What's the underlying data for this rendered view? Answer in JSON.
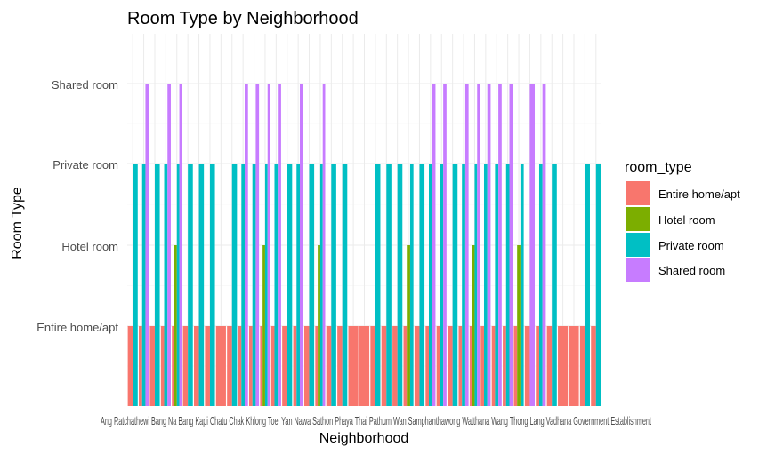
{
  "chart_data": {
    "type": "bar",
    "title": "Room Type by Neighborhood",
    "xlabel": "Neighborhood",
    "ylabel": "Room Type",
    "y_categories": [
      "Entire home/apt",
      "Hotel room",
      "Private room",
      "Shared room"
    ],
    "x_tick_text": "Ang Ratchathewi Bang Na Bang Kapi Chatu Chak Khlong Toei Yan Nawa Sathon Phaya Thai Pathum Wan Samphanthawong Watthana Wang Thong Lang Vadhana Government Establishment",
    "legend": {
      "title": "room_type",
      "items": [
        {
          "label": "Entire home/apt",
          "color": "#F8766D"
        },
        {
          "label": "Hotel room",
          "color": "#7CAE00"
        },
        {
          "label": "Private room",
          "color": "#00BFC4"
        },
        {
          "label": "Shared room",
          "color": "#C77CFF"
        }
      ]
    },
    "grid": true,
    "legend_position": "right",
    "neighborhoods": [
      {
        "types": [
          "Entire home/apt",
          "Private room"
        ]
      },
      {
        "types": [
          "Entire home/apt",
          "Private room",
          "Shared room"
        ]
      },
      {
        "types": [
          "Entire home/apt",
          "Private room"
        ]
      },
      {
        "types": [
          "Entire home/apt",
          "Private room",
          "Shared room"
        ]
      },
      {
        "types": [
          "Entire home/apt",
          "Hotel room",
          "Private room",
          "Shared room"
        ]
      },
      {
        "types": [
          "Entire home/apt",
          "Private room"
        ]
      },
      {
        "types": [
          "Entire home/apt",
          "Private room"
        ]
      },
      {
        "types": [
          "Entire home/apt",
          "Private room"
        ]
      },
      {
        "types": [
          "Entire home/apt"
        ]
      },
      {
        "types": [
          "Entire home/apt",
          "Private room"
        ]
      },
      {
        "types": [
          "Entire home/apt",
          "Private room",
          "Shared room"
        ]
      },
      {
        "types": [
          "Entire home/apt",
          "Private room",
          "Shared room"
        ]
      },
      {
        "types": [
          "Entire home/apt",
          "Hotel room",
          "Private room",
          "Shared room"
        ]
      },
      {
        "types": [
          "Entire home/apt",
          "Private room",
          "Shared room"
        ]
      },
      {
        "types": [
          "Entire home/apt",
          "Private room"
        ]
      },
      {
        "types": [
          "Entire home/apt",
          "Private room",
          "Shared room"
        ]
      },
      {
        "types": [
          "Entire home/apt",
          "Private room"
        ]
      },
      {
        "types": [
          "Entire home/apt",
          "Hotel room",
          "Private room",
          "Shared room"
        ]
      },
      {
        "types": [
          "Entire home/apt",
          "Private room"
        ]
      },
      {
        "types": [
          "Entire home/apt",
          "Private room"
        ]
      },
      {
        "types": [
          "Entire home/apt"
        ]
      },
      {
        "types": [
          "Entire home/apt"
        ]
      },
      {
        "types": [
          "Entire home/apt",
          "Private room"
        ]
      },
      {
        "types": [
          "Entire home/apt",
          "Private room"
        ]
      },
      {
        "types": [
          "Entire home/apt",
          "Private room"
        ]
      },
      {
        "types": [
          "Entire home/apt",
          "Hotel room",
          "Private room"
        ]
      },
      {
        "types": [
          "Entire home/apt",
          "Private room"
        ]
      },
      {
        "types": [
          "Entire home/apt",
          "Private room",
          "Shared room"
        ]
      },
      {
        "types": [
          "Entire home/apt",
          "Private room",
          "Shared room"
        ]
      },
      {
        "types": [
          "Entire home/apt",
          "Private room"
        ]
      },
      {
        "types": [
          "Entire home/apt",
          "Private room",
          "Shared room"
        ]
      },
      {
        "types": [
          "Entire home/apt",
          "Hotel room",
          "Private room",
          "Shared room"
        ]
      },
      {
        "types": [
          "Entire home/apt",
          "Private room",
          "Shared room"
        ]
      },
      {
        "types": [
          "Entire home/apt",
          "Private room",
          "Shared room"
        ]
      },
      {
        "types": [
          "Entire home/apt",
          "Private room",
          "Shared room"
        ]
      },
      {
        "types": [
          "Entire home/apt",
          "Hotel room",
          "Private room"
        ]
      },
      {
        "types": [
          "Entire home/apt",
          "Shared room"
        ]
      },
      {
        "types": [
          "Entire home/apt",
          "Private room",
          "Shared room"
        ]
      },
      {
        "types": [
          "Entire home/apt",
          "Private room"
        ]
      },
      {
        "types": [
          "Entire home/apt"
        ]
      },
      {
        "types": [
          "Entire home/apt"
        ]
      },
      {
        "types": [
          "Entire home/apt",
          "Private room"
        ]
      },
      {
        "types": [
          "Entire home/apt",
          "Private room"
        ]
      }
    ]
  }
}
